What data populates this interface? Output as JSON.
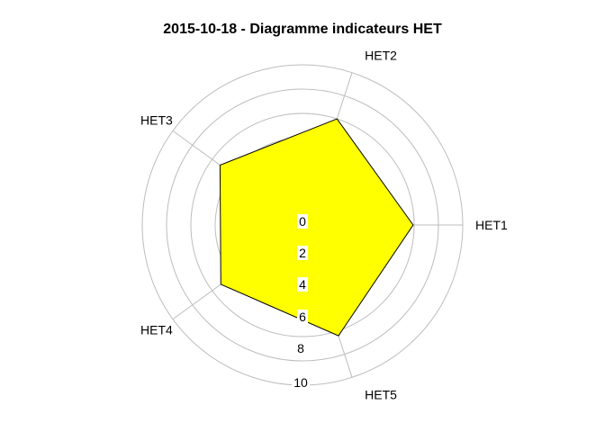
{
  "chart_data": {
    "type": "radar",
    "title": "2015-10-18 - Diagramme indicateurs HET",
    "axes": [
      "HET1",
      "HET2",
      "HET3",
      "HET4",
      "HET5"
    ],
    "series": [
      {
        "values": [
          4.9,
          5.0,
          4.0,
          3.9,
          5.5
        ],
        "color": "#ffff00"
      }
    ],
    "rlim": [
      0,
      10
    ],
    "ticks": [
      "0",
      "2",
      "4",
      "6",
      "8",
      "10"
    ],
    "grid": true
  }
}
